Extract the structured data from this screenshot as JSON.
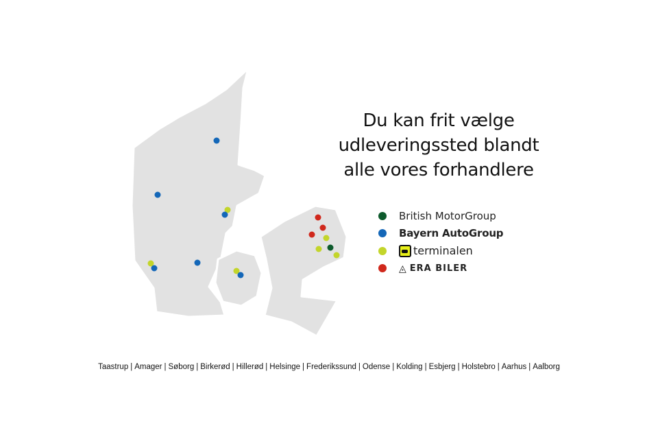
{
  "headline": [
    "Du kan frit vælge",
    "udleveringssted blandt",
    "alle vores forhandlere"
  ],
  "colors": {
    "british": "#0d5a2c",
    "bayern": "#1467b8",
    "terminalen": "#c3d52b",
    "era": "#d0281c",
    "land": "#e2e2e2"
  },
  "legend": [
    {
      "label": "British MotorGroup",
      "color": "#0d5a2c"
    },
    {
      "label": "Bayern AutoGroup",
      "color": "#1467b8"
    },
    {
      "label": "terminalen",
      "color": "#c3d52b",
      "icon": "terminalen-logo-icon"
    },
    {
      "label": "ERA BILER",
      "color": "#d0281c",
      "icon": "era-logo-icon"
    }
  ],
  "cities": [
    "Taastrup",
    "Amager",
    "Søborg",
    "Birkerød",
    "Hillerød",
    "Helsinge",
    "Frederikssund",
    "Odense",
    "Kolding",
    "Esbjerg",
    "Holstebro",
    "Aarhus",
    "Aalborg"
  ]
}
